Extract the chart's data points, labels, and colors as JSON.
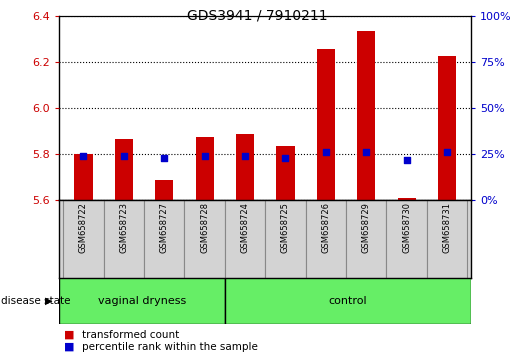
{
  "title": "GDS3941 / 7910211",
  "samples": [
    "GSM658722",
    "GSM658723",
    "GSM658727",
    "GSM658728",
    "GSM658724",
    "GSM658725",
    "GSM658726",
    "GSM658729",
    "GSM658730",
    "GSM658731"
  ],
  "transformed_count": [
    5.8,
    5.865,
    5.685,
    5.875,
    5.885,
    5.835,
    6.255,
    6.335,
    5.61,
    6.225
  ],
  "percentile_rank": [
    24,
    24,
    23,
    24,
    24,
    23,
    26,
    26,
    22,
    26
  ],
  "ymin": 5.6,
  "ymax": 6.4,
  "yticks": [
    5.6,
    5.8,
    6.0,
    6.2,
    6.4
  ],
  "y2min": 0,
  "y2max": 100,
  "y2ticks": [
    0,
    25,
    50,
    75,
    100
  ],
  "bar_color": "#cc0000",
  "dot_color": "#0000cc",
  "grid_color": "#000000",
  "bg_plot": "#ffffff",
  "bg_label": "#d3d3d3",
  "bg_group": "#66ee66",
  "group_labels": [
    "vaginal dryness",
    "control"
  ],
  "n_group1": 4,
  "disease_state_label": "disease state",
  "legend_items": [
    "transformed count",
    "percentile rank within the sample"
  ],
  "legend_colors": [
    "#cc0000",
    "#0000cc"
  ],
  "bar_width": 0.45
}
